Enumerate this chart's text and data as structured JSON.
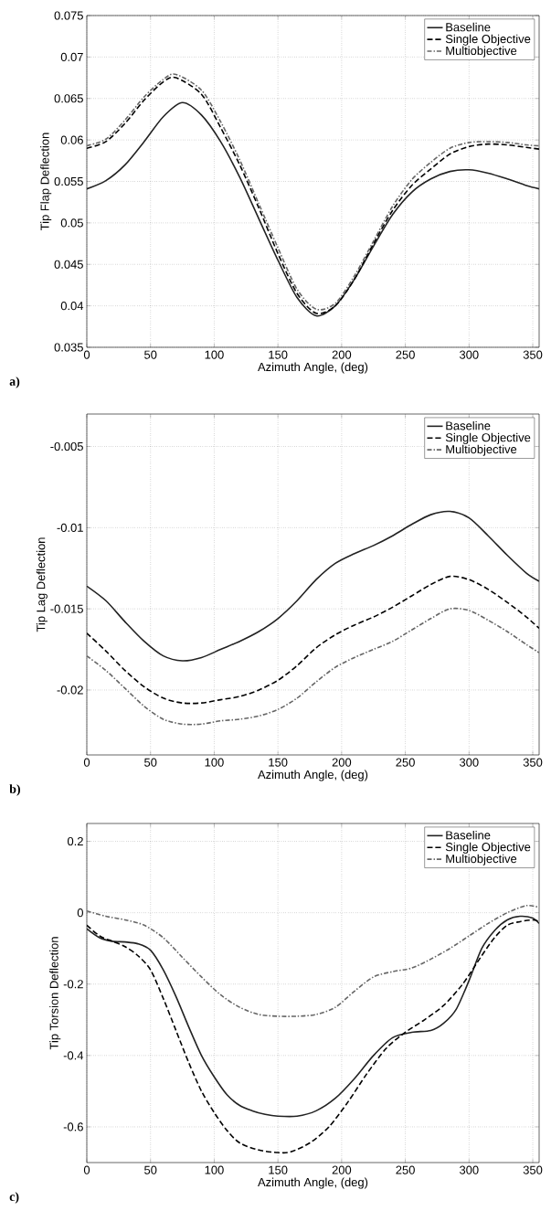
{
  "chart_data": [
    {
      "type": "line",
      "xlabel": "Azimuth Angle, (deg)",
      "ylabel": "Tip Flap Deflection",
      "annotations": [
        "a)"
      ],
      "xlim": [
        0,
        355
      ],
      "ylim": [
        0.035,
        0.075
      ],
      "xticks": [
        0,
        50,
        100,
        150,
        200,
        250,
        300,
        350
      ],
      "yticks": [
        0.035,
        0.04,
        0.045,
        0.05,
        0.055,
        0.06,
        0.065,
        0.07,
        0.075
      ],
      "grid": true,
      "legend": "top right",
      "marker": "none",
      "series": [
        {
          "name": "Baseline",
          "color": "#222222",
          "line_style": "solid",
          "x": [
            0,
            15,
            30,
            45,
            60,
            75,
            90,
            105,
            120,
            135,
            150,
            165,
            180,
            195,
            210,
            225,
            240,
            255,
            270,
            285,
            300,
            315,
            330,
            345,
            355
          ],
          "values": [
            0.0541,
            0.0551,
            0.057,
            0.0598,
            0.0628,
            0.0645,
            0.063,
            0.0598,
            0.0555,
            0.0505,
            0.0455,
            0.041,
            0.0388,
            0.04,
            0.0432,
            0.0472,
            0.051,
            0.0537,
            0.0553,
            0.0562,
            0.0564,
            0.056,
            0.0553,
            0.0545,
            0.0541
          ]
        },
        {
          "name": "Single Objective",
          "color": "#000000",
          "line_style": "dashed",
          "x": [
            0,
            15,
            30,
            45,
            60,
            70,
            90,
            105,
            120,
            135,
            150,
            165,
            180,
            195,
            210,
            225,
            240,
            255,
            270,
            285,
            300,
            315,
            330,
            345,
            355
          ],
          "values": [
            0.059,
            0.0598,
            0.062,
            0.0648,
            0.067,
            0.0675,
            0.0655,
            0.0615,
            0.057,
            0.0518,
            0.0463,
            0.0415,
            0.0391,
            0.04,
            0.0432,
            0.0475,
            0.0515,
            0.0545,
            0.0565,
            0.0583,
            0.0592,
            0.0595,
            0.0594,
            0.0591,
            0.0589
          ]
        },
        {
          "name": "Multiobjective",
          "color": "#666666",
          "line_style": "dashdot",
          "x": [
            0,
            15,
            30,
            45,
            60,
            70,
            90,
            105,
            120,
            135,
            150,
            165,
            180,
            195,
            210,
            225,
            240,
            255,
            270,
            285,
            300,
            315,
            330,
            345,
            355
          ],
          "values": [
            0.0593,
            0.0601,
            0.0624,
            0.0652,
            0.0673,
            0.0679,
            0.066,
            0.0622,
            0.0576,
            0.0523,
            0.047,
            0.042,
            0.0396,
            0.0403,
            0.0436,
            0.0478,
            0.052,
            0.0552,
            0.0573,
            0.059,
            0.0597,
            0.0598,
            0.0597,
            0.0594,
            0.0593
          ]
        }
      ]
    },
    {
      "type": "line",
      "xlabel": "Azimuth Angle, (deg)",
      "ylabel": "Tip Lag Deflection",
      "annotations": [
        "b)"
      ],
      "xlim": [
        0,
        355
      ],
      "ylim": [
        -0.024,
        -0.003
      ],
      "xticks": [
        0,
        50,
        100,
        150,
        200,
        250,
        300,
        350
      ],
      "yticks": [
        -0.02,
        -0.015,
        -0.01,
        -0.005
      ],
      "grid": true,
      "legend": "top right",
      "marker": "none",
      "series": [
        {
          "name": "Baseline",
          "color": "#222222",
          "line_style": "solid",
          "x": [
            0,
            15,
            30,
            45,
            60,
            75,
            90,
            105,
            120,
            135,
            150,
            165,
            180,
            195,
            210,
            225,
            240,
            255,
            270,
            285,
            300,
            315,
            330,
            345,
            355
          ],
          "values": [
            -0.0136,
            -0.0145,
            -0.0158,
            -0.017,
            -0.0179,
            -0.0182,
            -0.018,
            -0.0175,
            -0.017,
            -0.0164,
            -0.0156,
            -0.0145,
            -0.0132,
            -0.0122,
            -0.0116,
            -0.0111,
            -0.0105,
            -0.0098,
            -0.0092,
            -0.009,
            -0.0094,
            -0.0105,
            -0.0117,
            -0.0128,
            -0.0133
          ]
        },
        {
          "name": "Single Objective",
          "color": "#000000",
          "line_style": "dashed",
          "x": [
            0,
            15,
            30,
            45,
            60,
            75,
            90,
            105,
            120,
            135,
            150,
            165,
            180,
            195,
            210,
            225,
            240,
            255,
            270,
            285,
            300,
            315,
            330,
            345,
            355
          ],
          "values": [
            -0.0165,
            -0.0176,
            -0.0188,
            -0.0198,
            -0.0205,
            -0.0208,
            -0.0208,
            -0.0206,
            -0.0204,
            -0.02,
            -0.0194,
            -0.0185,
            -0.0174,
            -0.0166,
            -0.016,
            -0.0155,
            -0.0149,
            -0.0142,
            -0.0135,
            -0.013,
            -0.0132,
            -0.0138,
            -0.0146,
            -0.0155,
            -0.0162
          ]
        },
        {
          "name": "Multiobjective",
          "color": "#666666",
          "line_style": "dashdot",
          "x": [
            0,
            15,
            30,
            45,
            60,
            75,
            90,
            105,
            120,
            135,
            150,
            165,
            180,
            195,
            210,
            225,
            240,
            255,
            270,
            285,
            300,
            315,
            330,
            345,
            355
          ],
          "values": [
            -0.0179,
            -0.0188,
            -0.0199,
            -0.021,
            -0.0218,
            -0.0221,
            -0.0221,
            -0.0219,
            -0.0218,
            -0.0216,
            -0.0212,
            -0.0205,
            -0.0195,
            -0.0186,
            -0.018,
            -0.0175,
            -0.017,
            -0.0163,
            -0.0156,
            -0.015,
            -0.0151,
            -0.0157,
            -0.0164,
            -0.0172,
            -0.0177
          ]
        }
      ]
    },
    {
      "type": "line",
      "xlabel": "Azimuth Angle, (deg)",
      "ylabel": "Tip Torsion Deflection",
      "annotations": [
        "c)"
      ],
      "xlim": [
        0,
        355
      ],
      "ylim": [
        -0.7,
        0.25
      ],
      "xticks": [
        0,
        50,
        100,
        150,
        200,
        250,
        300,
        350
      ],
      "yticks": [
        -0.6,
        -0.4,
        -0.2,
        0,
        0.2
      ],
      "grid": true,
      "legend": "top right",
      "marker": "none",
      "series": [
        {
          "name": "Baseline",
          "color": "#222222",
          "line_style": "solid",
          "x": [
            0,
            10,
            20,
            30,
            40,
            50,
            60,
            70,
            80,
            90,
            100,
            110,
            120,
            130,
            140,
            150,
            165,
            180,
            195,
            210,
            225,
            240,
            255,
            270,
            280,
            290,
            300,
            310,
            320,
            330,
            340,
            350,
            355
          ],
          "values": [
            -0.045,
            -0.07,
            -0.08,
            -0.082,
            -0.087,
            -0.105,
            -0.16,
            -0.235,
            -0.32,
            -0.4,
            -0.46,
            -0.51,
            -0.54,
            -0.555,
            -0.565,
            -0.57,
            -0.57,
            -0.555,
            -0.52,
            -0.465,
            -0.4,
            -0.35,
            -0.335,
            -0.33,
            -0.31,
            -0.27,
            -0.19,
            -0.1,
            -0.05,
            -0.02,
            -0.01,
            -0.015,
            -0.03
          ]
        },
        {
          "name": "Single Objective",
          "color": "#000000",
          "line_style": "dashed",
          "x": [
            0,
            10,
            20,
            30,
            40,
            50,
            60,
            70,
            80,
            90,
            100,
            110,
            120,
            135,
            150,
            160,
            175,
            190,
            205,
            220,
            235,
            250,
            265,
            280,
            295,
            310,
            320,
            330,
            340,
            350,
            355
          ],
          "values": [
            -0.035,
            -0.065,
            -0.08,
            -0.095,
            -0.12,
            -0.16,
            -0.24,
            -0.33,
            -0.42,
            -0.5,
            -0.56,
            -0.61,
            -0.645,
            -0.665,
            -0.672,
            -0.67,
            -0.645,
            -0.6,
            -0.53,
            -0.45,
            -0.38,
            -0.335,
            -0.3,
            -0.26,
            -0.2,
            -0.12,
            -0.07,
            -0.035,
            -0.025,
            -0.02,
            -0.025
          ]
        },
        {
          "name": "Multiobjective",
          "color": "#666666",
          "line_style": "dashdot",
          "x": [
            0,
            15,
            30,
            45,
            60,
            75,
            90,
            105,
            120,
            135,
            150,
            165,
            180,
            195,
            210,
            225,
            240,
            255,
            270,
            285,
            300,
            315,
            330,
            345,
            355
          ],
          "values": [
            0.005,
            -0.01,
            -0.02,
            -0.035,
            -0.07,
            -0.125,
            -0.18,
            -0.23,
            -0.265,
            -0.285,
            -0.29,
            -0.29,
            -0.285,
            -0.265,
            -0.22,
            -0.18,
            -0.165,
            -0.155,
            -0.13,
            -0.1,
            -0.065,
            -0.03,
            0.0,
            0.02,
            0.015
          ]
        }
      ]
    }
  ]
}
